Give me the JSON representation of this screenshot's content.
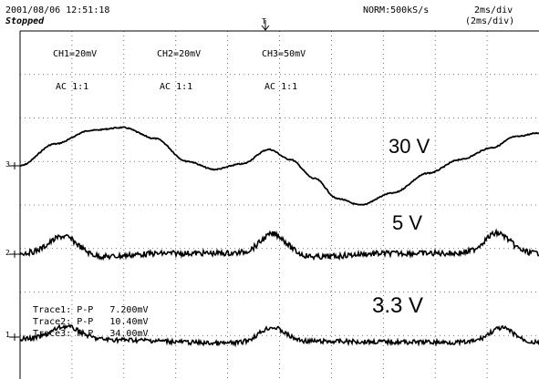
{
  "header": {
    "timestamp": "2001/08/06 12:51:18",
    "status": "Stopped",
    "mode": "NORM:500kS/s",
    "timebase": "2ms/div",
    "timebase_sub": "(2ms/div)"
  },
  "channels": [
    {
      "label": "CH1=20mV",
      "coupling": "AC 1:1",
      "marker": "1"
    },
    {
      "label": "CH2=20mV",
      "coupling": "AC 1:1",
      "marker": "2"
    },
    {
      "label": "CH3=50mV",
      "coupling": "AC 1:1",
      "marker": "3"
    }
  ],
  "trigger_marker": "T",
  "trace_labels": {
    "ch3": "30 V",
    "ch2": "5 V",
    "ch1": "3.3 V"
  },
  "measurements": [
    {
      "trace": "Trace1:",
      "type": "P-P",
      "value": "7.200mV"
    },
    {
      "trace": "Trace2:",
      "type": "P-P",
      "value": "10.40mV"
    },
    {
      "trace": "Trace3:",
      "type": "P-P",
      "value": "34.00mV"
    }
  ],
  "colors": {
    "trace": "#000000",
    "grid": "#000000",
    "background": "#ffffff"
  }
}
